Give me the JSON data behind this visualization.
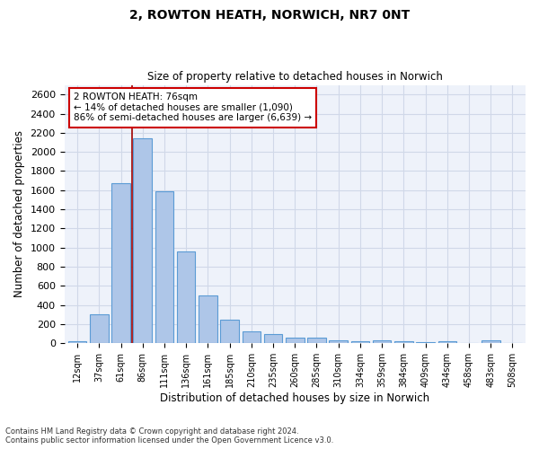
{
  "title": "2, ROWTON HEATH, NORWICH, NR7 0NT",
  "subtitle": "Size of property relative to detached houses in Norwich",
  "xlabel": "Distribution of detached houses by size in Norwich",
  "ylabel": "Number of detached properties",
  "categories": [
    "12sqm",
    "37sqm",
    "61sqm",
    "86sqm",
    "111sqm",
    "136sqm",
    "161sqm",
    "185sqm",
    "210sqm",
    "235sqm",
    "260sqm",
    "285sqm",
    "310sqm",
    "334sqm",
    "359sqm",
    "384sqm",
    "409sqm",
    "434sqm",
    "458sqm",
    "483sqm",
    "508sqm"
  ],
  "values": [
    25,
    300,
    1670,
    2140,
    1590,
    960,
    505,
    250,
    125,
    100,
    55,
    55,
    35,
    20,
    30,
    20,
    15,
    25,
    5,
    30,
    5
  ],
  "bar_color": "#aec6e8",
  "bar_edge_color": "#5b9bd5",
  "vline_x": 2.5,
  "vline_color": "#a00000",
  "annotation_title": "2 ROWTON HEATH: 76sqm",
  "annotation_line1": "← 14% of detached houses are smaller (1,090)",
  "annotation_line2": "86% of semi-detached houses are larger (6,639) →",
  "annotation_box_color": "#ffffff",
  "annotation_box_edge_color": "#cc0000",
  "ylim": [
    0,
    2700
  ],
  "yticks": [
    0,
    200,
    400,
    600,
    800,
    1000,
    1200,
    1400,
    1600,
    1800,
    2000,
    2200,
    2400,
    2600
  ],
  "grid_color": "#d0d8e8",
  "background_color": "#eef2fa",
  "footer_line1": "Contains HM Land Registry data © Crown copyright and database right 2024.",
  "footer_line2": "Contains public sector information licensed under the Open Government Licence v3.0."
}
